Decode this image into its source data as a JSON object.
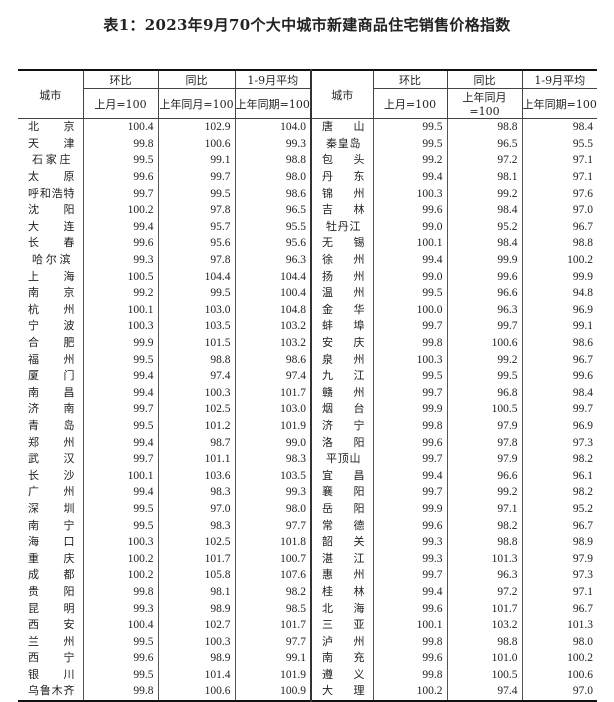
{
  "title": "表1：2023年9月70个大中城市新建商品住宅销售价格指数",
  "headers": {
    "city": "城市",
    "mom": "环比",
    "yoy": "同比",
    "avg": "1-9月平均",
    "mom_base": "上月=100",
    "yoy_base": "上年同月=100",
    "avg_base": "上年同期=100"
  },
  "left_rows": [
    {
      "city": "北京",
      "mom": "100.4",
      "yoy": "102.9",
      "avg": "104.0"
    },
    {
      "city": "天津",
      "mom": "99.8",
      "yoy": "100.6",
      "avg": "99.3"
    },
    {
      "city": "石家庄",
      "mom": "99.5",
      "yoy": "99.1",
      "avg": "98.8"
    },
    {
      "city": "太原",
      "mom": "99.6",
      "yoy": "99.7",
      "avg": "98.0"
    },
    {
      "city": "呼和浩特",
      "mom": "99.7",
      "yoy": "99.5",
      "avg": "98.6"
    },
    {
      "city": "沈阳",
      "mom": "100.2",
      "yoy": "97.8",
      "avg": "96.5"
    },
    {
      "city": "大连",
      "mom": "99.4",
      "yoy": "95.7",
      "avg": "95.5"
    },
    {
      "city": "长春",
      "mom": "99.6",
      "yoy": "95.6",
      "avg": "95.6"
    },
    {
      "city": "哈尔滨",
      "mom": "99.3",
      "yoy": "97.8",
      "avg": "96.3"
    },
    {
      "city": "上海",
      "mom": "100.5",
      "yoy": "104.4",
      "avg": "104.4"
    },
    {
      "city": "南京",
      "mom": "99.2",
      "yoy": "99.5",
      "avg": "100.4"
    },
    {
      "city": "杭州",
      "mom": "100.1",
      "yoy": "103.0",
      "avg": "104.8"
    },
    {
      "city": "宁波",
      "mom": "100.3",
      "yoy": "103.5",
      "avg": "103.2"
    },
    {
      "city": "合肥",
      "mom": "99.9",
      "yoy": "101.5",
      "avg": "103.2"
    },
    {
      "city": "福州",
      "mom": "99.5",
      "yoy": "98.8",
      "avg": "98.6"
    },
    {
      "city": "厦门",
      "mom": "99.4",
      "yoy": "97.4",
      "avg": "97.4"
    },
    {
      "city": "南昌",
      "mom": "99.4",
      "yoy": "100.3",
      "avg": "101.7"
    },
    {
      "city": "济南",
      "mom": "99.7",
      "yoy": "102.5",
      "avg": "103.0"
    },
    {
      "city": "青岛",
      "mom": "99.5",
      "yoy": "101.2",
      "avg": "101.9"
    },
    {
      "city": "郑州",
      "mom": "99.4",
      "yoy": "98.7",
      "avg": "99.0"
    },
    {
      "city": "武汉",
      "mom": "99.7",
      "yoy": "101.1",
      "avg": "98.3"
    },
    {
      "city": "长沙",
      "mom": "100.1",
      "yoy": "103.6",
      "avg": "103.5"
    },
    {
      "city": "广州",
      "mom": "99.4",
      "yoy": "98.3",
      "avg": "99.3"
    },
    {
      "city": "深圳",
      "mom": "99.5",
      "yoy": "97.0",
      "avg": "98.0"
    },
    {
      "city": "南宁",
      "mom": "99.5",
      "yoy": "98.3",
      "avg": "97.7"
    },
    {
      "city": "海口",
      "mom": "100.3",
      "yoy": "102.5",
      "avg": "101.8"
    },
    {
      "city": "重庆",
      "mom": "100.2",
      "yoy": "101.7",
      "avg": "100.7"
    },
    {
      "city": "成都",
      "mom": "100.2",
      "yoy": "105.8",
      "avg": "107.6"
    },
    {
      "city": "贵阳",
      "mom": "99.8",
      "yoy": "98.1",
      "avg": "98.2"
    },
    {
      "city": "昆明",
      "mom": "99.3",
      "yoy": "98.9",
      "avg": "98.5"
    },
    {
      "city": "西安",
      "mom": "100.4",
      "yoy": "102.7",
      "avg": "101.7"
    },
    {
      "city": "兰州",
      "mom": "99.5",
      "yoy": "100.3",
      "avg": "97.7"
    },
    {
      "city": "西宁",
      "mom": "99.6",
      "yoy": "98.9",
      "avg": "99.1"
    },
    {
      "city": "银川",
      "mom": "99.5",
      "yoy": "101.4",
      "avg": "101.9"
    },
    {
      "city": "乌鲁木齐",
      "mom": "99.8",
      "yoy": "100.6",
      "avg": "100.9"
    }
  ],
  "right_rows": [
    {
      "city": "唐山",
      "mom": "99.5",
      "yoy": "98.8",
      "avg": "98.4"
    },
    {
      "city": "秦皇岛",
      "mom": "99.5",
      "yoy": "96.5",
      "avg": "95.5"
    },
    {
      "city": "包头",
      "mom": "99.2",
      "yoy": "97.2",
      "avg": "97.1"
    },
    {
      "city": "丹东",
      "mom": "99.4",
      "yoy": "98.1",
      "avg": "97.1"
    },
    {
      "city": "锦州",
      "mom": "100.3",
      "yoy": "99.2",
      "avg": "97.6"
    },
    {
      "city": "吉林",
      "mom": "99.6",
      "yoy": "98.4",
      "avg": "97.0"
    },
    {
      "city": "牡丹江",
      "mom": "99.0",
      "yoy": "95.2",
      "avg": "96.7"
    },
    {
      "city": "无锡",
      "mom": "100.1",
      "yoy": "98.4",
      "avg": "98.8"
    },
    {
      "city": "徐州",
      "mom": "99.4",
      "yoy": "99.9",
      "avg": "100.2"
    },
    {
      "city": "扬州",
      "mom": "99.0",
      "yoy": "99.6",
      "avg": "99.9"
    },
    {
      "city": "温州",
      "mom": "99.5",
      "yoy": "96.6",
      "avg": "94.8"
    },
    {
      "city": "金华",
      "mom": "100.0",
      "yoy": "96.3",
      "avg": "96.9"
    },
    {
      "city": "蚌埠",
      "mom": "99.7",
      "yoy": "99.7",
      "avg": "99.1"
    },
    {
      "city": "安庆",
      "mom": "99.8",
      "yoy": "100.6",
      "avg": "98.6"
    },
    {
      "city": "泉州",
      "mom": "100.3",
      "yoy": "99.2",
      "avg": "96.7"
    },
    {
      "city": "九江",
      "mom": "99.5",
      "yoy": "99.5",
      "avg": "99.6"
    },
    {
      "city": "赣州",
      "mom": "99.7",
      "yoy": "96.8",
      "avg": "98.4"
    },
    {
      "city": "烟台",
      "mom": "99.9",
      "yoy": "100.5",
      "avg": "99.7"
    },
    {
      "city": "济宁",
      "mom": "99.8",
      "yoy": "97.9",
      "avg": "96.9"
    },
    {
      "city": "洛阳",
      "mom": "99.6",
      "yoy": "97.8",
      "avg": "97.3"
    },
    {
      "city": "平顶山",
      "mom": "99.7",
      "yoy": "97.9",
      "avg": "98.2"
    },
    {
      "city": "宜昌",
      "mom": "99.4",
      "yoy": "96.6",
      "avg": "96.1"
    },
    {
      "city": "襄阳",
      "mom": "99.7",
      "yoy": "99.2",
      "avg": "98.2"
    },
    {
      "city": "岳阳",
      "mom": "99.9",
      "yoy": "97.1",
      "avg": "95.2"
    },
    {
      "city": "常德",
      "mom": "99.6",
      "yoy": "98.2",
      "avg": "96.7"
    },
    {
      "city": "韶关",
      "mom": "99.3",
      "yoy": "98.8",
      "avg": "98.9"
    },
    {
      "city": "湛江",
      "mom": "99.3",
      "yoy": "101.3",
      "avg": "97.9"
    },
    {
      "city": "惠州",
      "mom": "99.7",
      "yoy": "96.3",
      "avg": "97.3"
    },
    {
      "city": "桂林",
      "mom": "99.4",
      "yoy": "97.2",
      "avg": "97.1"
    },
    {
      "city": "北海",
      "mom": "99.6",
      "yoy": "101.7",
      "avg": "96.7"
    },
    {
      "city": "三亚",
      "mom": "100.1",
      "yoy": "103.2",
      "avg": "101.3"
    },
    {
      "city": "泸州",
      "mom": "99.8",
      "yoy": "98.8",
      "avg": "98.0"
    },
    {
      "city": "南充",
      "mom": "99.6",
      "yoy": "101.0",
      "avg": "100.2"
    },
    {
      "city": "遵义",
      "mom": "99.8",
      "yoy": "100.5",
      "avg": "100.6"
    },
    {
      "city": "大理",
      "mom": "100.2",
      "yoy": "97.4",
      "avg": "97.0"
    }
  ]
}
